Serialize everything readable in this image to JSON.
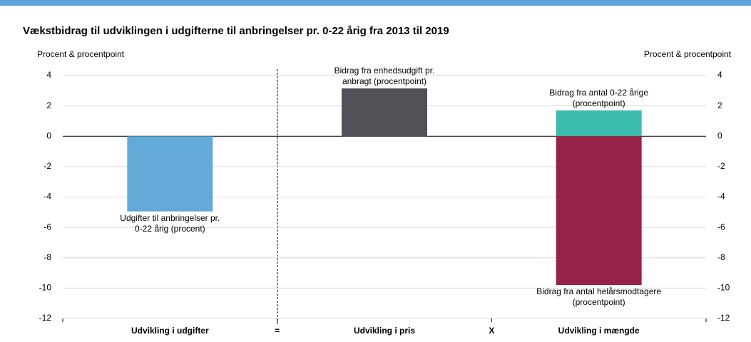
{
  "chart_data": {
    "type": "bar",
    "title": "Vækstbidrag til udviklingen i udgifterne til anbringelser pr. 0-22 årig fra 2013 til 2019",
    "ylabel": "Procent & procentpoint",
    "y2label": "Procent & procentpoint",
    "categories": [
      "Udvikling i udgifter",
      "Udvikling i pris",
      "Udvikling i mængde"
    ],
    "operators": [
      "=",
      "X"
    ],
    "series": [
      {
        "name": "Udgifter til anbringelser pr.\n0-22 årig (procent)",
        "color": "#64aad8",
        "values": [
          -4.95,
          null,
          null
        ]
      },
      {
        "name": "Bidrag fra enhedsudgift pr.\nanbragt (procentpoint)",
        "color": "#505257",
        "values": [
          null,
          3.15,
          null
        ]
      },
      {
        "name": "Bidrag fra antal 0-22 årige\n(procentpoint)",
        "color": "#3cbcae",
        "values": [
          null,
          null,
          1.7
        ]
      },
      {
        "name": "Bidrag fra antal helårsmodtagere\n(procentpoint)",
        "color": "#98234a",
        "values": [
          null,
          null,
          -9.8
        ]
      }
    ],
    "ylim": [
      -12,
      4
    ],
    "yticks": [
      -12,
      -10,
      -8,
      -6,
      -4,
      -2,
      0,
      2,
      4
    ],
    "y2lim": [
      -12,
      4
    ],
    "y2ticks": [
      -12,
      -10,
      -8,
      -6,
      -4,
      -2,
      0,
      2,
      4
    ],
    "grid": true
  }
}
